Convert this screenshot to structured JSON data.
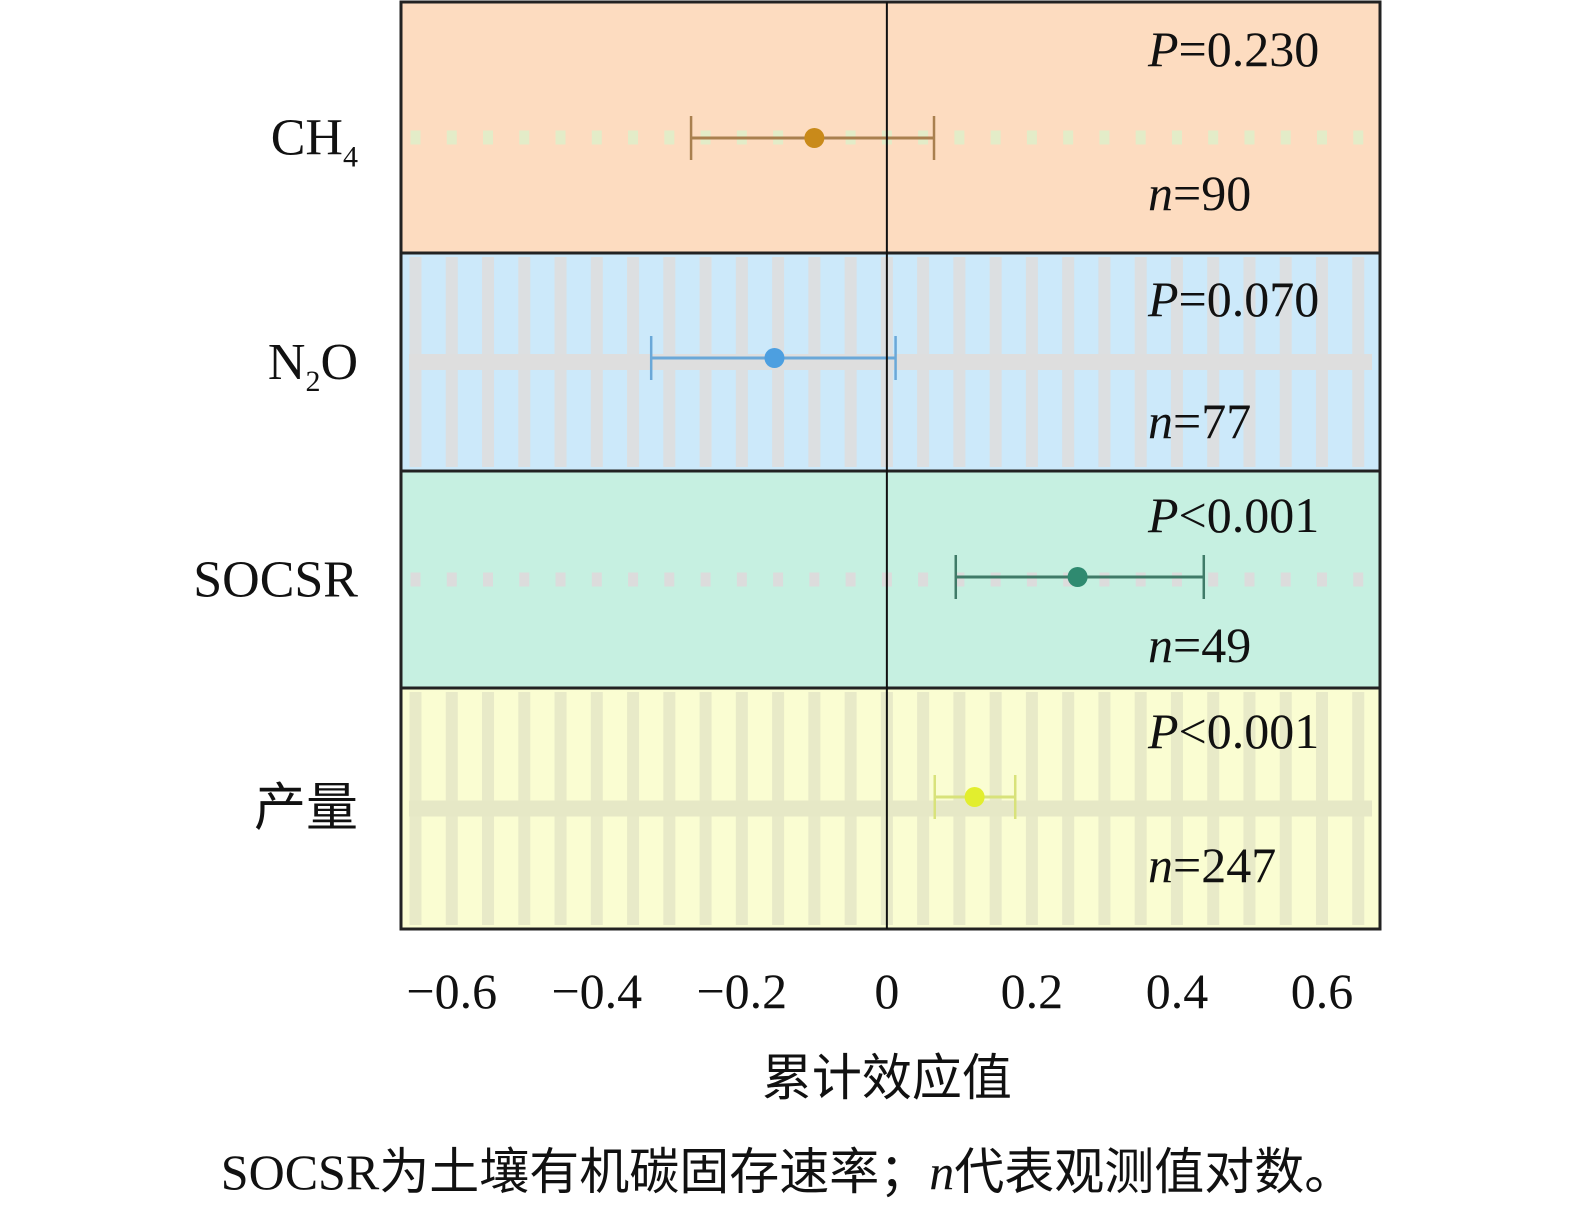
{
  "chart_data": {
    "type": "forest",
    "xlabel": "累计效应值",
    "xlim": [
      -0.67,
      0.68
    ],
    "xticks": [
      -0.6,
      -0.4,
      -0.2,
      0,
      0.2,
      0.4,
      0.6
    ],
    "xtick_labels": [
      "−0.6",
      "−0.4",
      "−0.2",
      "0",
      "0.2",
      "0.4",
      "0.6"
    ],
    "reference_line": 0,
    "rows": [
      {
        "label_main": "CH",
        "label_sub": "4",
        "label_tail": "",
        "estimate": -0.1,
        "ci_low": -0.27,
        "ci_high": 0.065,
        "p_prefix": "P",
        "p_text": "=0.230",
        "n_prefix": "n",
        "n_text": "=90",
        "bg": "#fddcc0",
        "color": "#c98a1a",
        "line": "#a9804f",
        "grid": "dots"
      },
      {
        "label_main": "N",
        "label_sub": "2",
        "label_tail": "O",
        "estimate": -0.155,
        "ci_low": -0.325,
        "ci_high": 0.012,
        "p_prefix": "P",
        "p_text": "=0.070",
        "n_prefix": "n",
        "n_text": "=77",
        "bg": "#cce9fa",
        "color": "#4d9fe0",
        "line": "#6aa8d8",
        "grid": "full"
      },
      {
        "label_main": "SOCSR",
        "label_sub": "",
        "label_tail": "",
        "estimate": 0.263,
        "ci_low": 0.095,
        "ci_high": 0.437,
        "p_prefix": "P",
        "p_text": "<0.001",
        "n_prefix": "n",
        "n_text": "=49",
        "bg": "#c6f0e1",
        "color": "#2f8a70",
        "line": "#3f7b68",
        "grid": "dots"
      },
      {
        "label_main": "产量",
        "label_sub": "",
        "label_tail": "",
        "estimate": 0.121,
        "ci_low": 0.066,
        "ci_high": 0.177,
        "p_prefix": "P",
        "p_text": "<0.001",
        "n_prefix": "n",
        "n_text": "=247",
        "bg": "#fafdd2",
        "color": "#e2ee2e",
        "line": "#d8e27a",
        "grid": "full"
      }
    ]
  },
  "caption": {
    "part1": "SOCSR为土壤有机碳固存速率；",
    "italic": "n",
    "part2": "代表观测值对数。"
  }
}
